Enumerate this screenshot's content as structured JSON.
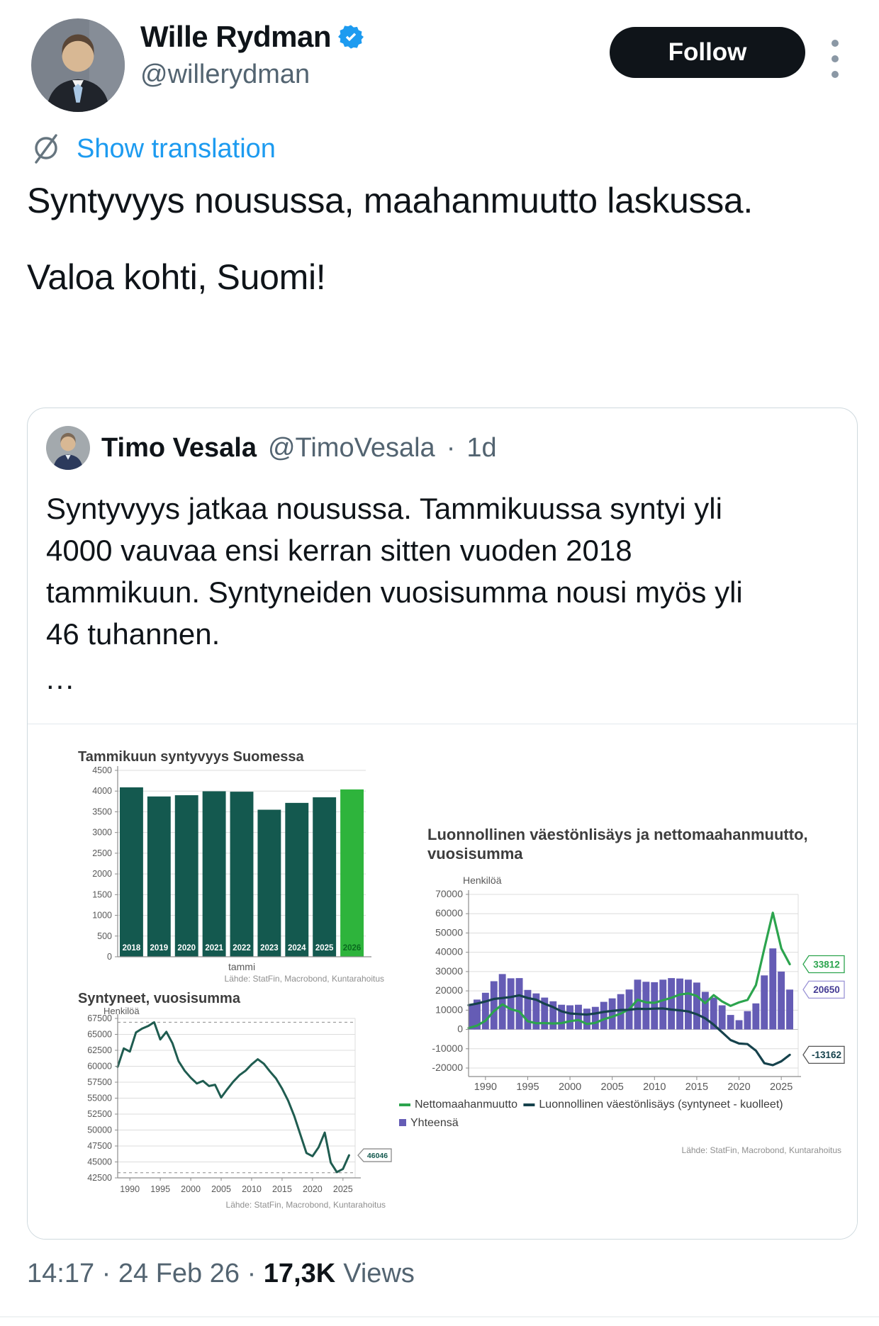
{
  "colors": {
    "accent_blue": "#1d9bf0",
    "text_primary": "#0f1419",
    "text_secondary": "#536471",
    "card_border": "#cfd9de",
    "follow_button_bg": "#0f1419",
    "bar_dark_green": "#14594f",
    "bar_highlight_green": "#2eb43c",
    "net_migration_green": "#2ca44e",
    "natural_increase_dark": "#16424c",
    "total_purple": "#655cb5"
  },
  "header": {
    "display_name": "Wille Rydman",
    "handle": "@willerydman",
    "follow_label": "Follow"
  },
  "translation": {
    "label": "Show translation"
  },
  "tweet": {
    "paragraph1": "Syntyvyys nousussa, maahanmuutto laskussa.",
    "paragraph2": "Valoa kohti, Suomi!"
  },
  "quote": {
    "display_name": "Timo Vesala",
    "handle": "@TimoVesala",
    "separator": "·",
    "time": "1d",
    "text": "Syntyvyys jatkaa nousussa. Tammikuussa syntyi yli 4000 vauvaa ensi kerran sitten vuoden 2018 tammikuun. Syntyneiden vuosisumma nousi myös yli 46 tuhannen.",
    "show_more": "..."
  },
  "footer": {
    "time": "14:17",
    "separator1": " · ",
    "date": "24 Feb 26",
    "separator2": " · ",
    "views_count": "17,3K",
    "views_label": "Views"
  },
  "chart_data": [
    {
      "id": "january-births",
      "type": "bar",
      "title": "Tammikuun syntyvyys Suomessa",
      "categories": [
        "2018",
        "2019",
        "2020",
        "2021",
        "2022",
        "2023",
        "2024",
        "2025",
        "2026"
      ],
      "values": [
        4090,
        3870,
        3900,
        3995,
        3985,
        3550,
        3715,
        3850,
        4040
      ],
      "highlight_index": 8,
      "bar_color": "#14594f",
      "highlight_color": "#2eb43c",
      "bar_label_color": "#ffffff",
      "highlight_label_color": "#0a6b1f",
      "xlabel": "tammi",
      "ylim": [
        0,
        4500
      ],
      "ytick_step": 500,
      "grid": true,
      "source": "Lähde: StatFin, Macrobond, Kuntarahoitus"
    },
    {
      "id": "births-annual-sum",
      "type": "line",
      "title": "Syntyneet, vuosisumma",
      "ylabel": "Henkilöä",
      "color": "#1f5c50",
      "x": [
        1988,
        1989,
        1990,
        1991,
        1992,
        1993,
        1994,
        1995,
        1996,
        1997,
        1998,
        1999,
        2000,
        2001,
        2002,
        2003,
        2004,
        2005,
        2006,
        2007,
        2008,
        2009,
        2010,
        2011,
        2012,
        2013,
        2014,
        2015,
        2016,
        2017,
        2018,
        2019,
        2020,
        2021,
        2022,
        2023,
        2024,
        2025,
        2026
      ],
      "values": [
        59900,
        62800,
        62300,
        65300,
        65900,
        66300,
        66900,
        64200,
        65400,
        63600,
        60800,
        59300,
        58200,
        57300,
        57700,
        56900,
        57100,
        55100,
        56400,
        57600,
        58600,
        59300,
        60300,
        61100,
        60400,
        59200,
        58100,
        56500,
        54600,
        52200,
        49300,
        46400,
        45900,
        47300,
        49600,
        44900,
        43400,
        43900,
        46046
      ],
      "ylim": [
        42500,
        67500
      ],
      "ytick_step": 2500,
      "xlim": [
        1988,
        2027
      ],
      "xticks": [
        1990,
        1995,
        2000,
        2005,
        2010,
        2015,
        2020,
        2025
      ],
      "dashed_lines": [
        66900,
        43300
      ],
      "end_label": "46046",
      "end_label_color": "#14594f",
      "end_label_border": "#8c8c8c",
      "grid": true,
      "source": "Lähde: StatFin, Macrobond, Kuntarahoitus"
    },
    {
      "id": "natural-increase-net-migration",
      "type": "combo",
      "title_line1": "Luonnollinen väestönlisäys ja nettomaahanmuutto,",
      "title_line2": "vuosisumma",
      "ylabel": "Henkilöä",
      "x": [
        1988,
        1989,
        1990,
        1991,
        1992,
        1993,
        1994,
        1995,
        1996,
        1997,
        1998,
        1999,
        2000,
        2001,
        2002,
        2003,
        2004,
        2005,
        2006,
        2007,
        2008,
        2009,
        2010,
        2011,
        2012,
        2013,
        2014,
        2015,
        2016,
        2017,
        2018,
        2019,
        2020,
        2021,
        2022,
        2023,
        2024,
        2025,
        2026
      ],
      "series": [
        {
          "name": "Yhteensä",
          "kind": "area-bars",
          "color": "#655cb5",
          "values": [
            13300,
            15500,
            19000,
            25000,
            28700,
            26500,
            26600,
            20500,
            18700,
            16500,
            14600,
            12800,
            12500,
            12800,
            10800,
            11700,
            14300,
            16100,
            18300,
            20700,
            25800,
            24700,
            24500,
            25800,
            26600,
            26400,
            25800,
            24300,
            19500,
            16500,
            12500,
            7500,
            4800,
            9500,
            13500,
            28000,
            42000,
            30000,
            20650
          ],
          "end_label": "20650",
          "end_label_color": "#453c94",
          "end_label_border": "#9b94d6"
        },
        {
          "name": "Nettomaahanmuutto",
          "kind": "line",
          "color": "#2ca44e",
          "values": [
            700,
            2000,
            4500,
            9500,
            13000,
            10500,
            9300,
            4200,
            3200,
            3300,
            3100,
            3300,
            4300,
            4900,
            2800,
            3400,
            5300,
            6600,
            8200,
            10500,
            15400,
            14000,
            13800,
            15100,
            16400,
            18100,
            18700,
            17400,
            13600,
            17800,
            14500,
            12200,
            14000,
            15300,
            23000,
            42000,
            60500,
            42000,
            33812
          ],
          "end_label": "33812",
          "end_label_color": "#2ca44e",
          "end_label_border": "#2ca44e"
        },
        {
          "name": "Luonnollinen väestönlisäys (syntyneet - kuolleet)",
          "kind": "line",
          "color": "#16424c",
          "values": [
            12600,
            13400,
            14500,
            15800,
            16300,
            16800,
            17700,
            16300,
            15400,
            13300,
            11600,
            9400,
            8300,
            8000,
            7700,
            8300,
            9100,
            9600,
            10100,
            10200,
            10700,
            10600,
            10800,
            10900,
            10300,
            9900,
            9300,
            7900,
            5800,
            2500,
            -1500,
            -5500,
            -7300,
            -7600,
            -11000,
            -17500,
            -18500,
            -16500,
            -13162
          ],
          "end_label": "-13162",
          "end_label_color": "#16424c",
          "end_label_border": "#555555"
        }
      ],
      "legend_row1": [
        "Nettomaahanmuutto",
        "Luonnollinen väestönlisäys (syntyneet - kuolleet)"
      ],
      "legend_row2": [
        "Yhteensä"
      ],
      "ylim": [
        -20000,
        70000
      ],
      "ytick_step": 10000,
      "xlim": [
        1988,
        2027
      ],
      "xticks": [
        1990,
        1995,
        2000,
        2005,
        2010,
        2015,
        2020,
        2025
      ],
      "grid": true,
      "legend_position": "bottom-left",
      "source": "Lähde: StatFin, Macrobond, Kuntarahoitus"
    }
  ]
}
